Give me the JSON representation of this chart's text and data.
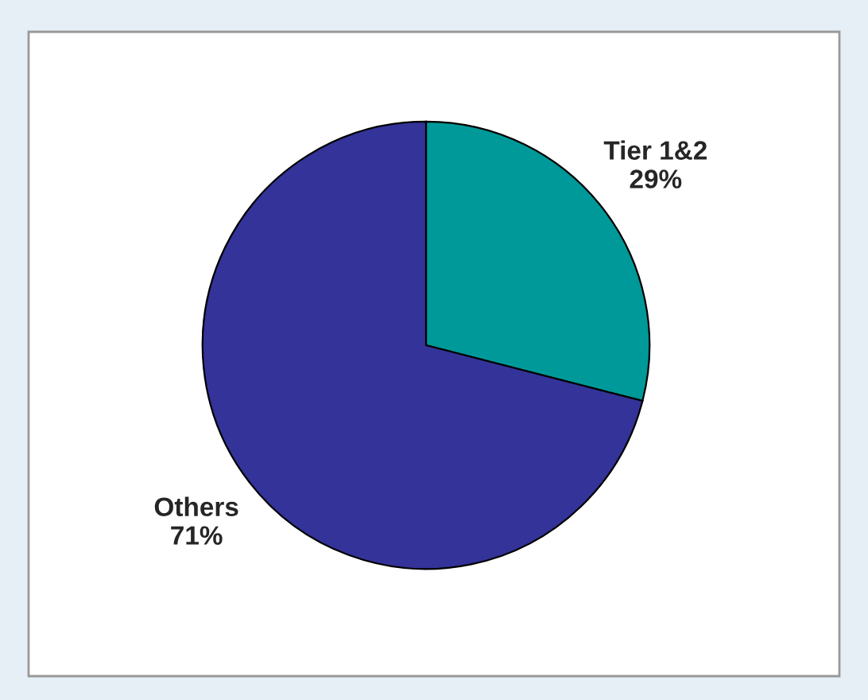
{
  "chart_data": {
    "type": "pie",
    "categories": [
      "Tier 1&2",
      "Others"
    ],
    "values": [
      29,
      71
    ],
    "colors": [
      "#009999",
      "#333399"
    ],
    "value_labels": [
      "29%",
      "71%"
    ]
  }
}
